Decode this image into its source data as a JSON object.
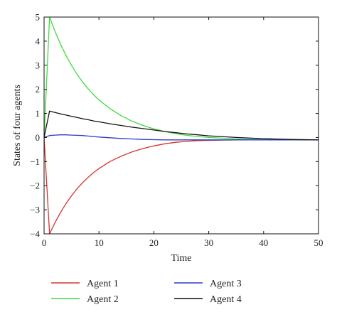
{
  "chart_data": {
    "type": "line",
    "title": "",
    "xlabel": "Time",
    "ylabel": "States of four agents",
    "xlim": [
      0,
      50
    ],
    "ylim": [
      -4,
      5
    ],
    "xticks": [
      0,
      10,
      20,
      30,
      40,
      50
    ],
    "yticks": [
      -4,
      -3,
      -2,
      -1,
      0,
      1,
      2,
      3,
      4,
      5
    ],
    "grid": false,
    "legend_position": "bottom",
    "series": [
      {
        "name": "Agent 1",
        "color": "#d9302c",
        "x": [
          0,
          1,
          2,
          3,
          4,
          5,
          6,
          7,
          8,
          9,
          10,
          12,
          14,
          16,
          18,
          20,
          22,
          24,
          26,
          28,
          30,
          35,
          40,
          45,
          50
        ],
        "y": [
          0,
          -4.0,
          -3.53,
          -3.11,
          -2.74,
          -2.42,
          -2.13,
          -1.88,
          -1.66,
          -1.46,
          -1.29,
          -1.0,
          -0.78,
          -0.6,
          -0.46,
          -0.35,
          -0.26,
          -0.2,
          -0.16,
          -0.13,
          -0.12,
          -0.1,
          -0.1,
          -0.1,
          -0.1
        ]
      },
      {
        "name": "Agent 2",
        "color": "#3ddc3d",
        "x": [
          0,
          1,
          2,
          3,
          4,
          5,
          6,
          7,
          8,
          9,
          10,
          12,
          14,
          16,
          18,
          20,
          22,
          24,
          26,
          28,
          30,
          35,
          40,
          45,
          50
        ],
        "y": [
          0,
          5.0,
          4.4,
          3.87,
          3.4,
          2.99,
          2.63,
          2.31,
          2.03,
          1.78,
          1.56,
          1.2,
          0.91,
          0.68,
          0.5,
          0.36,
          0.25,
          0.16,
          0.09,
          0.04,
          0.0,
          -0.06,
          -0.09,
          -0.1,
          -0.1
        ]
      },
      {
        "name": "Agent 3",
        "color": "#2b3cc9",
        "x": [
          0,
          1,
          2,
          3,
          4,
          5,
          6,
          7,
          8,
          9,
          10,
          12,
          14,
          16,
          18,
          20,
          22,
          24,
          26,
          28,
          30,
          35,
          40,
          45,
          50
        ],
        "y": [
          0,
          0.08,
          0.1,
          0.11,
          0.11,
          0.1,
          0.09,
          0.08,
          0.06,
          0.04,
          0.02,
          -0.01,
          -0.04,
          -0.06,
          -0.08,
          -0.09,
          -0.1,
          -0.1,
          -0.1,
          -0.1,
          -0.1,
          -0.1,
          -0.1,
          -0.1,
          -0.1
        ]
      },
      {
        "name": "Agent 4",
        "color": "#111111",
        "x": [
          0,
          1,
          2,
          3,
          4,
          5,
          6,
          7,
          8,
          9,
          10,
          12,
          14,
          16,
          18,
          20,
          22,
          24,
          26,
          28,
          30,
          35,
          40,
          45,
          50
        ],
        "y": [
          0,
          1.1,
          1.04,
          0.98,
          0.93,
          0.88,
          0.83,
          0.78,
          0.74,
          0.69,
          0.65,
          0.57,
          0.5,
          0.43,
          0.37,
          0.31,
          0.25,
          0.2,
          0.15,
          0.11,
          0.07,
          0.0,
          -0.05,
          -0.08,
          -0.1
        ]
      }
    ]
  }
}
